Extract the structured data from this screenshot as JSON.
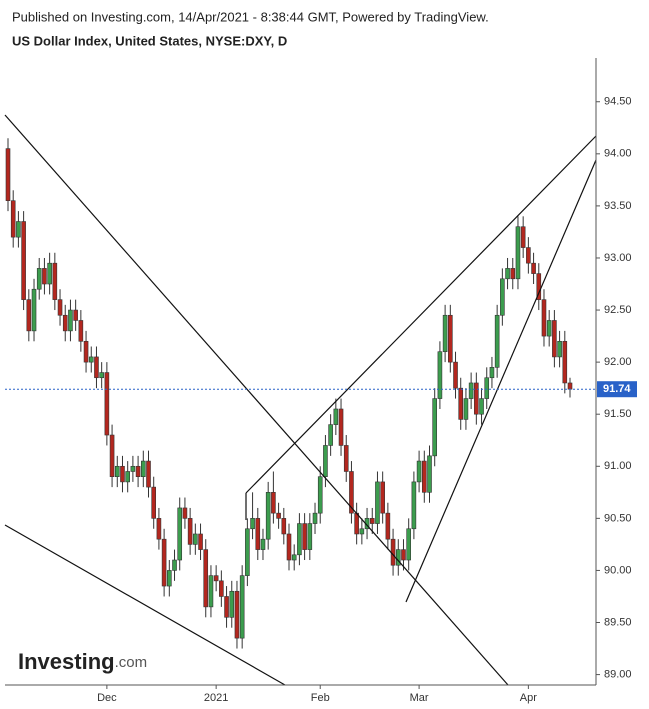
{
  "header": {
    "published": "Published on Investing.com, 14/Apr/2021 - 8:38:44 GMT, Powered by TradingView."
  },
  "logo": {
    "name": "Investing",
    "suffix": ".com"
  },
  "chart_data": {
    "type": "candlestick",
    "title": "US Dollar Index, United States, NYSE:DXY, D",
    "up_color": "#3c9d4e",
    "down_color": "#b3271f",
    "categories": [
      null,
      null,
      null,
      null,
      null,
      null,
      null,
      null,
      null,
      null,
      null,
      null,
      null,
      null,
      null,
      null,
      null,
      null,
      null,
      "Dec",
      null,
      null,
      null,
      null,
      null,
      null,
      null,
      null,
      null,
      null,
      null,
      null,
      null,
      null,
      null,
      null,
      null,
      null,
      null,
      null,
      "2021",
      null,
      null,
      null,
      null,
      null,
      null,
      null,
      null,
      null,
      null,
      null,
      null,
      null,
      null,
      null,
      null,
      null,
      null,
      null,
      "Feb",
      null,
      null,
      null,
      null,
      null,
      null,
      null,
      null,
      null,
      null,
      null,
      null,
      null,
      null,
      null,
      null,
      null,
      null,
      "Mar",
      null,
      null,
      null,
      null,
      null,
      null,
      null,
      null,
      null,
      null,
      null,
      null,
      null,
      null,
      null,
      null,
      null,
      null,
      null,
      null,
      "Apr",
      null,
      null,
      null,
      null,
      null,
      null,
      null,
      null
    ],
    "open": [
      94.05,
      93.55,
      93.2,
      93.35,
      92.6,
      92.3,
      92.7,
      92.9,
      92.75,
      92.95,
      92.6,
      92.45,
      92.3,
      92.5,
      92.4,
      92.2,
      92.0,
      92.05,
      91.85,
      91.9,
      91.3,
      90.9,
      91.0,
      90.85,
      90.95,
      91.0,
      90.9,
      91.05,
      90.8,
      90.5,
      90.3,
      89.85,
      90.0,
      90.1,
      90.6,
      90.5,
      90.25,
      90.35,
      90.2,
      89.65,
      89.95,
      89.9,
      89.75,
      89.55,
      89.8,
      89.35,
      89.95,
      90.4,
      90.5,
      90.2,
      90.3,
      90.75,
      90.55,
      90.5,
      90.35,
      90.1,
      90.15,
      90.45,
      90.2,
      90.45,
      90.55,
      90.9,
      91.2,
      91.4,
      91.55,
      91.2,
      90.95,
      90.55,
      90.35,
      90.4,
      90.5,
      90.45,
      90.85,
      90.55,
      90.3,
      90.05,
      90.2,
      90.1,
      90.4,
      90.85,
      91.05,
      90.75,
      91.1,
      91.65,
      92.1,
      92.45,
      92.0,
      91.75,
      91.45,
      91.65,
      91.8,
      91.5,
      91.65,
      91.85,
      91.95,
      92.45,
      92.8,
      92.9,
      92.8,
      93.3,
      93.1,
      92.95,
      92.85,
      92.6,
      92.25,
      92.4,
      92.05,
      92.2,
      91.8
    ],
    "high": [
      94.15,
      93.65,
      93.45,
      93.45,
      92.7,
      92.8,
      93.0,
      93.0,
      93.05,
      93.05,
      92.7,
      92.55,
      92.6,
      92.6,
      92.5,
      92.3,
      92.15,
      92.15,
      92.0,
      92.0,
      91.4,
      91.1,
      91.1,
      91.05,
      91.1,
      91.1,
      91.15,
      91.15,
      90.9,
      90.6,
      90.4,
      90.1,
      90.2,
      90.7,
      90.7,
      90.6,
      90.45,
      90.45,
      90.3,
      90.05,
      90.05,
      90.0,
      89.85,
      89.9,
      89.9,
      90.05,
      90.5,
      90.75,
      90.6,
      90.4,
      90.85,
      90.95,
      90.65,
      90.6,
      90.45,
      90.25,
      90.55,
      90.55,
      90.55,
      90.65,
      91.0,
      91.3,
      91.5,
      91.65,
      91.65,
      91.3,
      91.05,
      90.65,
      90.5,
      90.6,
      90.6,
      90.95,
      90.95,
      90.65,
      90.4,
      90.3,
      90.3,
      90.5,
      90.95,
      91.15,
      91.15,
      91.2,
      91.75,
      92.2,
      92.55,
      92.55,
      92.1,
      91.85,
      91.75,
      91.9,
      91.9,
      91.75,
      91.95,
      92.05,
      92.55,
      92.9,
      93.0,
      93.0,
      93.4,
      93.4,
      93.2,
      93.05,
      92.95,
      92.7,
      92.5,
      92.5,
      92.3,
      92.3,
      91.85
    ],
    "low": [
      93.45,
      93.1,
      93.1,
      92.5,
      92.2,
      92.2,
      92.6,
      92.65,
      92.65,
      92.5,
      92.35,
      92.2,
      92.2,
      92.3,
      92.1,
      91.9,
      91.9,
      91.75,
      91.75,
      91.2,
      90.8,
      90.8,
      90.75,
      90.75,
      90.85,
      90.8,
      90.8,
      90.7,
      90.4,
      90.2,
      89.75,
      89.75,
      89.9,
      90.0,
      90.4,
      90.15,
      90.15,
      90.1,
      89.55,
      89.55,
      89.8,
      89.65,
      89.45,
      89.45,
      89.25,
      89.25,
      89.85,
      90.3,
      90.1,
      90.1,
      90.2,
      90.45,
      90.4,
      90.25,
      90.0,
      90.0,
      90.05,
      90.1,
      90.1,
      90.35,
      90.45,
      90.8,
      91.1,
      91.3,
      91.1,
      90.85,
      90.45,
      90.25,
      90.25,
      90.3,
      90.35,
      90.35,
      90.45,
      90.2,
      89.95,
      89.95,
      90.0,
      90.0,
      90.3,
      90.75,
      90.65,
      90.65,
      91.0,
      91.55,
      92.0,
      91.9,
      91.65,
      91.35,
      91.35,
      91.55,
      91.4,
      91.4,
      91.55,
      91.75,
      91.85,
      92.35,
      92.7,
      92.7,
      92.7,
      93.0,
      92.85,
      92.75,
      92.5,
      92.15,
      92.15,
      91.95,
      91.95,
      91.7,
      91.66
    ],
    "close": [
      93.55,
      93.2,
      93.35,
      92.6,
      92.3,
      92.7,
      92.9,
      92.75,
      92.95,
      92.6,
      92.45,
      92.3,
      92.5,
      92.4,
      92.2,
      92.0,
      92.05,
      91.85,
      91.9,
      91.3,
      90.9,
      91.0,
      90.85,
      90.95,
      91.0,
      90.9,
      91.05,
      90.8,
      90.5,
      90.3,
      89.85,
      90.0,
      90.1,
      90.6,
      90.5,
      90.25,
      90.35,
      90.2,
      89.65,
      89.95,
      89.9,
      89.75,
      89.55,
      89.8,
      89.35,
      89.95,
      90.4,
      90.5,
      90.2,
      90.3,
      90.75,
      90.55,
      90.5,
      90.35,
      90.1,
      90.15,
      90.45,
      90.2,
      90.45,
      90.55,
      90.9,
      91.2,
      91.4,
      91.55,
      91.2,
      90.95,
      90.55,
      90.35,
      90.4,
      90.5,
      90.45,
      90.85,
      90.55,
      90.3,
      90.05,
      90.2,
      90.1,
      90.4,
      90.85,
      91.05,
      90.75,
      91.1,
      91.65,
      92.1,
      92.45,
      92.0,
      91.75,
      91.45,
      91.65,
      91.8,
      91.5,
      91.65,
      91.85,
      91.95,
      92.45,
      92.8,
      92.9,
      92.8,
      93.3,
      93.1,
      92.95,
      92.85,
      92.6,
      92.25,
      92.4,
      92.05,
      92.2,
      91.8,
      91.74
    ],
    "ylim": [
      88.9,
      94.92
    ],
    "yticks": [
      {
        "value": 89,
        "label": "89.00"
      },
      {
        "value": 89.5,
        "label": "89.50"
      },
      {
        "value": 90,
        "label": "90.00"
      },
      {
        "value": 90.5,
        "label": "90.50"
      },
      {
        "value": 91,
        "label": "91.00"
      },
      {
        "value": 91.5,
        "label": "91.50"
      },
      {
        "value": 92,
        "label": "92.00"
      },
      {
        "value": 92.5,
        "label": "92.50"
      },
      {
        "value": 93,
        "label": "93.00"
      },
      {
        "value": 93.5,
        "label": "93.50"
      },
      {
        "value": 94,
        "label": "94.00"
      },
      {
        "value": 94.5,
        "label": "94.50"
      }
    ],
    "last_price": {
      "value": 91.74,
      "label": "91.74",
      "color": "#2962c8"
    }
  }
}
